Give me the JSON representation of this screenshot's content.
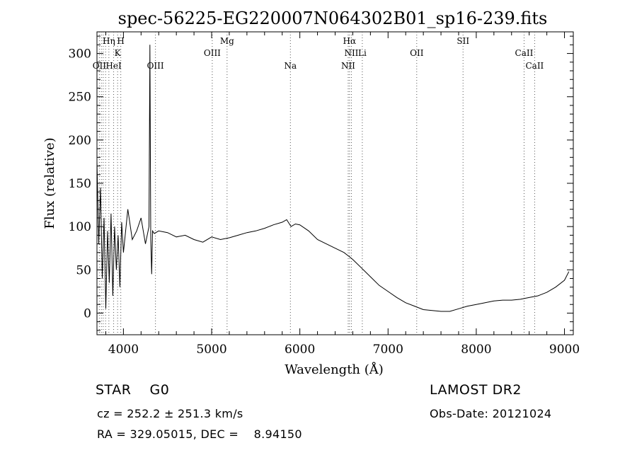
{
  "chart_data": {
    "type": "line",
    "title": "spec-56225-EG220007N064302B01_sp16-239.fits",
    "xlabel": "Wavelength (Å)",
    "ylabel": "Flux (relative)",
    "xlim": [
      3700,
      9100
    ],
    "ylim": [
      -25,
      325
    ],
    "xticks": [
      4000,
      5000,
      6000,
      7000,
      8000,
      9000
    ],
    "yticks": [
      0,
      50,
      100,
      150,
      200,
      250,
      300
    ],
    "grid": false,
    "line_color": "#000000",
    "series": [
      {
        "x": [
          3700,
          3720,
          3740,
          3760,
          3780,
          3800,
          3820,
          3840,
          3860,
          3880,
          3900,
          3920,
          3940,
          3960,
          3980,
          4000,
          4050,
          4100,
          4150,
          4200,
          4250,
          4290,
          4300,
          4310,
          4320,
          4330,
          4350,
          4400,
          4500,
          4600,
          4700,
          4800,
          4900,
          5000,
          5100,
          5200,
          5300,
          5400,
          5500,
          5600,
          5700,
          5800,
          5850,
          5900,
          5950,
          6000,
          6100,
          6200,
          6300,
          6400,
          6500,
          6563,
          6600,
          6700,
          6800,
          6900,
          7000,
          7100,
          7200,
          7300,
          7400,
          7500,
          7600,
          7700,
          7800,
          7900,
          8000,
          8100,
          8200,
          8300,
          8400,
          8500,
          8600,
          8700,
          8800,
          8900,
          9000,
          9050
        ],
        "y": [
          175,
          80,
          145,
          40,
          110,
          5,
          95,
          35,
          115,
          20,
          100,
          50,
          90,
          30,
          105,
          70,
          120,
          85,
          95,
          110,
          80,
          100,
          310,
          85,
          45,
          95,
          92,
          95,
          93,
          88,
          90,
          85,
          82,
          88,
          85,
          87,
          90,
          93,
          95,
          98,
          102,
          105,
          108,
          100,
          103,
          102,
          95,
          85,
          80,
          75,
          70,
          65,
          62,
          52,
          42,
          32,
          25,
          18,
          12,
          8,
          4,
          3,
          2,
          2,
          5,
          8,
          10,
          12,
          14,
          15,
          15,
          16,
          18,
          20,
          24,
          30,
          38,
          48
        ]
      }
    ],
    "lines_top": [
      {
        "label": "Hη",
        "x": 3835
      },
      {
        "label": "H",
        "x": 3970
      },
      {
        "label": "Mg",
        "x": 5175
      },
      {
        "label": "Hα",
        "x": 6563
      },
      {
        "label": "SII",
        "x": 6725
      }
    ],
    "lines_mid": [
      {
        "label": "K",
        "x": 3934
      },
      {
        "label": "OIII",
        "x": 5007
      },
      {
        "label": "NII",
        "x": 6584
      },
      {
        "label": "Li",
        "x": 6708
      },
      {
        "label": "OII",
        "x": 7325
      },
      {
        "label": "CaII",
        "x": 8542
      }
    ],
    "lines_bot": [
      {
        "label": "OII",
        "x": 3727
      },
      {
        "label": "HeI",
        "x": 3889
      },
      {
        "label": "OIII",
        "x": 4363
      },
      {
        "label": "Na",
        "x": 5893
      },
      {
        "label": "NII",
        "x": 6548
      },
      {
        "label": "CaII",
        "x": 8662
      }
    ],
    "line_marker_x": [
      3727,
      3750,
      3771,
      3798,
      3835,
      3889,
      3934,
      3970,
      4363,
      5007,
      5175,
      5893,
      6548,
      6563,
      6584,
      6708,
      7325,
      7850,
      8542,
      8662
    ],
    "label_x_override": {
      "SII": 7850,
      "CaII-top": 8662
    }
  },
  "info": {
    "class_line": "STAR    G0",
    "survey": "LAMOST DR2",
    "cz_line": "cz = 252.2 ± 251.3 km/s",
    "obs_date": "Obs-Date: 20121024",
    "coords": "RA = 329.05015, DEC =    8.94150"
  }
}
